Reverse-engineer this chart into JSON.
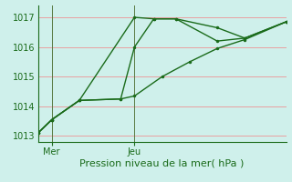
{
  "xlabel": "Pression niveau de la mer( hPa )",
  "ylim": [
    1012.8,
    1017.4
  ],
  "xlim": [
    0,
    9
  ],
  "yticks": [
    1013,
    1014,
    1015,
    1016,
    1017
  ],
  "xtick_positions": [
    0.5,
    3.5
  ],
  "xtick_labels": [
    "Mer",
    "Jeu"
  ],
  "bg_color": "#cff0eb",
  "grid_color": "#e8a0a0",
  "line_color": "#1a6b1a",
  "vline_x": [
    0.5,
    3.5
  ],
  "line1_x": [
    0,
    0.5,
    1.5,
    3.5,
    4.2,
    5.0,
    6.5,
    7.5,
    9.0
  ],
  "line1_y": [
    1013.1,
    1013.55,
    1014.2,
    1017.0,
    1016.95,
    1016.95,
    1016.65,
    1016.3,
    1016.85
  ],
  "line2_x": [
    0,
    0.5,
    1.5,
    3.0,
    3.5,
    4.2,
    5.0,
    6.5,
    7.5,
    9.0
  ],
  "line2_y": [
    1013.1,
    1013.55,
    1014.2,
    1014.25,
    1016.0,
    1016.95,
    1016.95,
    1016.2,
    1016.3,
    1016.85
  ],
  "line3_x": [
    0,
    0.5,
    1.5,
    3.0,
    3.5,
    4.5,
    5.5,
    6.5,
    7.5,
    9.0
  ],
  "line3_y": [
    1013.1,
    1013.55,
    1014.2,
    1014.25,
    1014.35,
    1015.0,
    1015.5,
    1015.95,
    1016.25,
    1016.85
  ],
  "marker_size": 2.5,
  "linewidth": 1.0
}
